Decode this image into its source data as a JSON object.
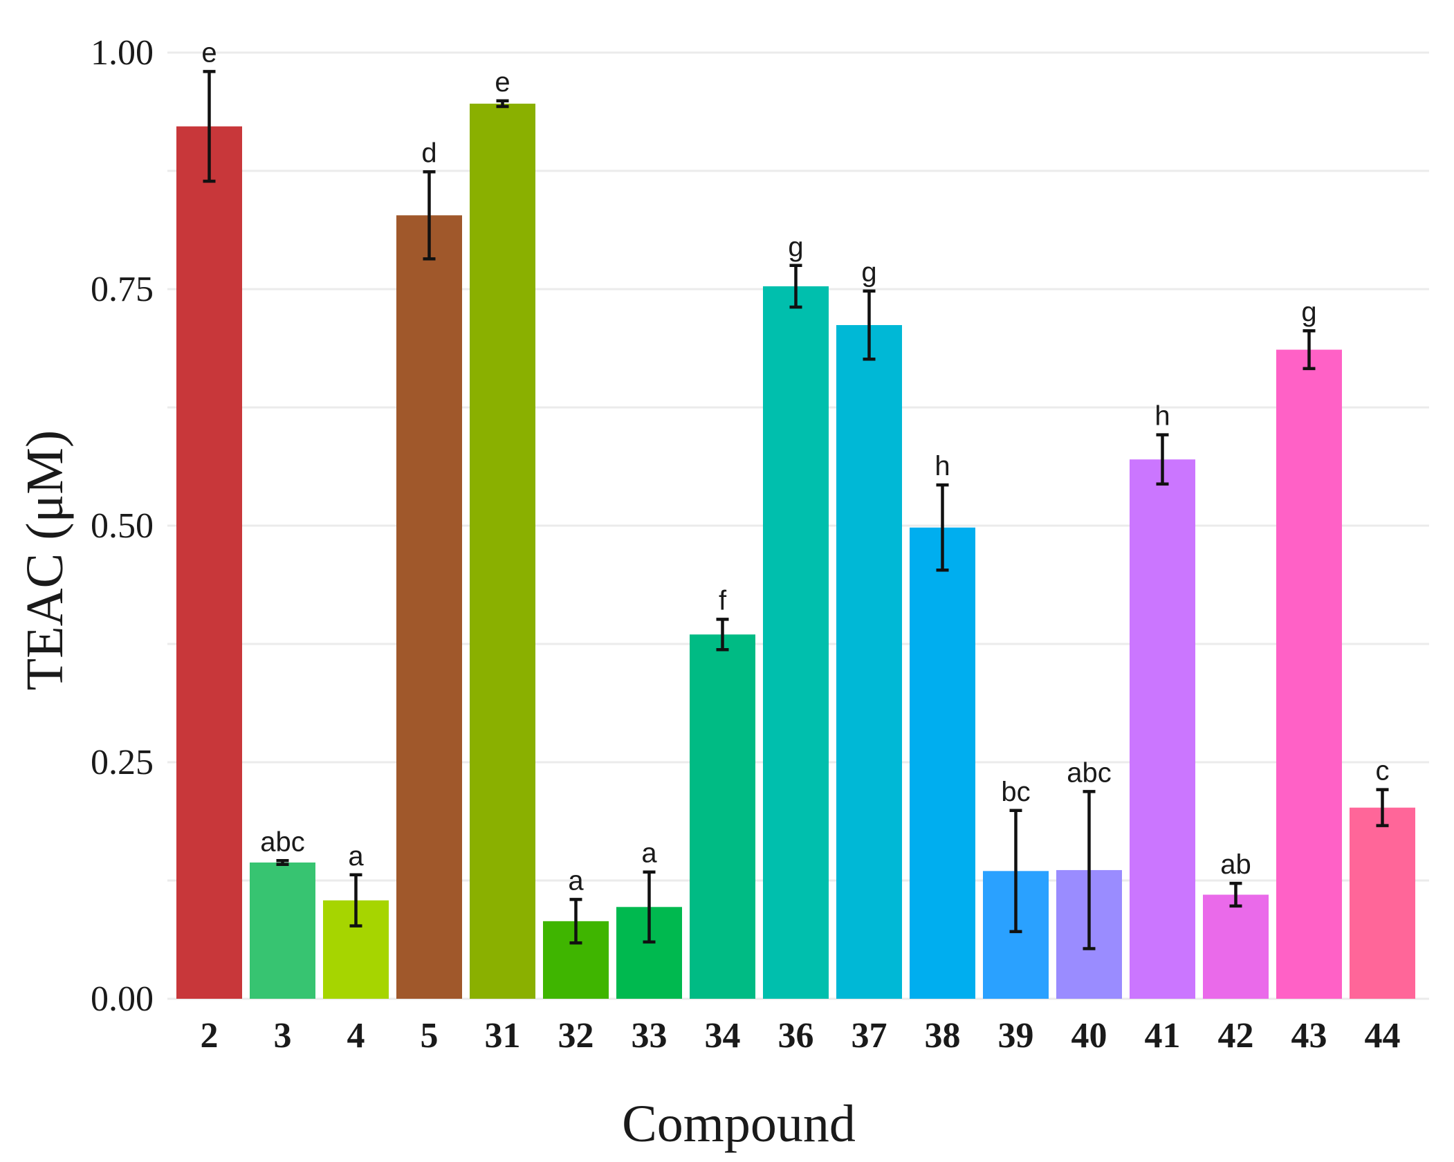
{
  "chart_data": {
    "type": "bar",
    "title": "",
    "xlabel": "Compound",
    "ylabel": "TEAC (μM)",
    "ylim": [
      0,
      1.0
    ],
    "yticks": [
      "0.00",
      "0.25",
      "0.50",
      "0.75",
      "1.00"
    ],
    "ytick_values": [
      0,
      0.25,
      0.5,
      0.75,
      1.0
    ],
    "grid": true,
    "legend": "none",
    "categories": [
      "2",
      "3",
      "4",
      "5",
      "31",
      "32",
      "33",
      "34",
      "36",
      "37",
      "38",
      "39",
      "40",
      "41",
      "42",
      "43",
      "44"
    ],
    "values": [
      0.922,
      0.144,
      0.104,
      0.828,
      0.946,
      0.082,
      0.097,
      0.385,
      0.753,
      0.712,
      0.498,
      0.135,
      0.136,
      0.57,
      0.11,
      0.686,
      0.202
    ],
    "errors": [
      0.058,
      0.002,
      0.027,
      0.046,
      0.003,
      0.023,
      0.037,
      0.016,
      0.022,
      0.036,
      0.045,
      0.064,
      0.083,
      0.026,
      0.012,
      0.02,
      0.019
    ],
    "significance_labels": [
      "e",
      "abc",
      "a",
      "d",
      "e",
      "a",
      "a",
      "f",
      "g",
      "g",
      "h",
      "bc",
      "abc",
      "h",
      "ab",
      "g",
      "c"
    ],
    "colors": [
      "#c8373a",
      "#37c471",
      "#a6d500",
      "#a0582b",
      "#8ab000",
      "#3fb500",
      "#00b94f",
      "#00bb84",
      "#00bfad",
      "#00b8d6",
      "#00aeef",
      "#2aa1ff",
      "#9a8cff",
      "#cb76ff",
      "#ea6aea",
      "#ff61c6",
      "#ff6699"
    ]
  }
}
